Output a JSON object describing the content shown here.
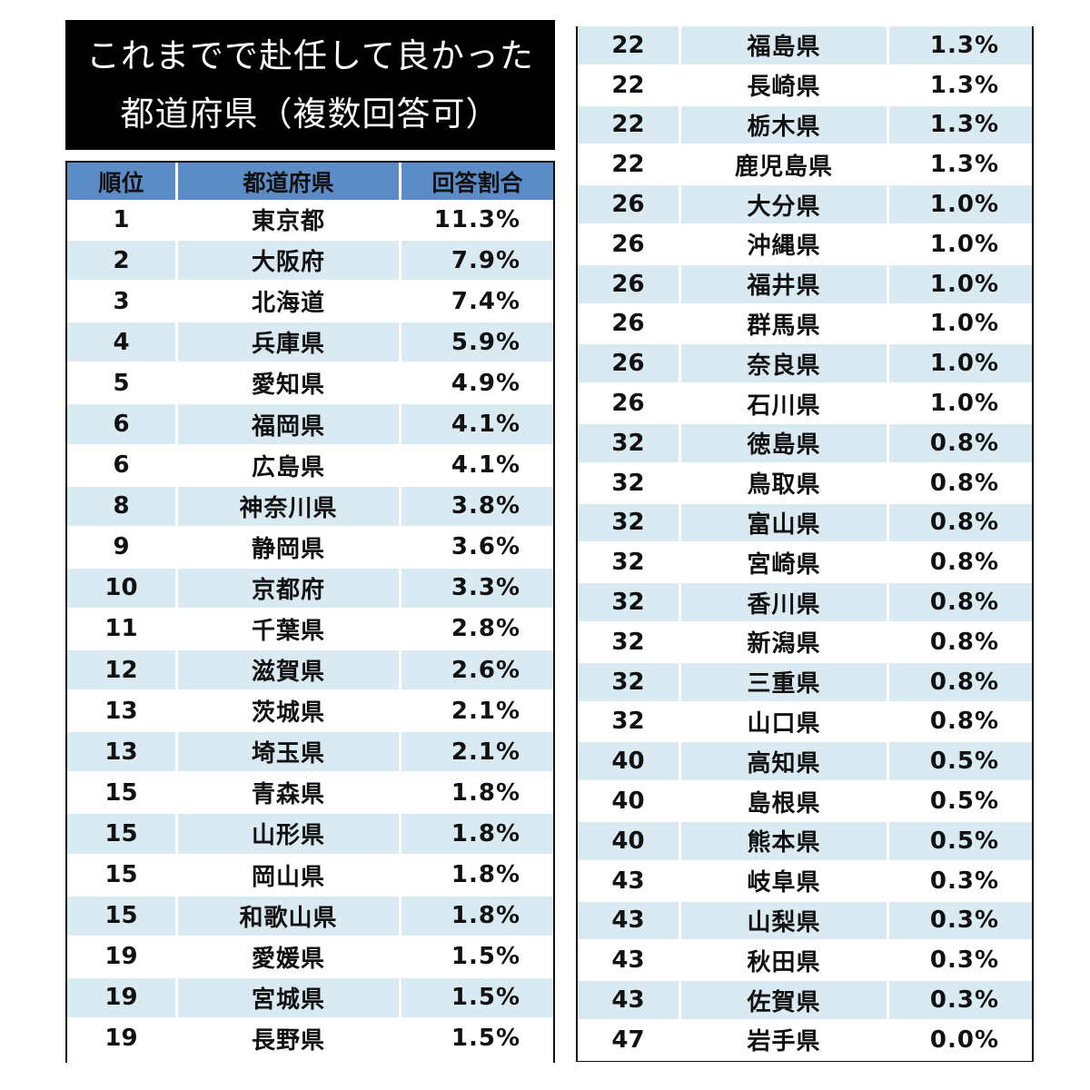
{
  "title": {
    "line1": "これまでで赴任して良かった",
    "line2": "都道府県（複数回答可）"
  },
  "colors": {
    "title_bg": "#000000",
    "header_bg": "#5b8cc7",
    "alt_row_bg": "#d9eaf2"
  },
  "headers": {
    "rank": "順位",
    "prefecture": "都道府県",
    "ratio": "回答割合"
  },
  "left_rows": [
    {
      "rank": "1",
      "name": "東京都",
      "pct": "11.3%"
    },
    {
      "rank": "2",
      "name": "大阪府",
      "pct": "7.9%"
    },
    {
      "rank": "3",
      "name": "北海道",
      "pct": "7.4%"
    },
    {
      "rank": "4",
      "name": "兵庫県",
      "pct": "5.9%"
    },
    {
      "rank": "5",
      "name": "愛知県",
      "pct": "4.9%"
    },
    {
      "rank": "6",
      "name": "福岡県",
      "pct": "4.1%"
    },
    {
      "rank": "6",
      "name": "広島県",
      "pct": "4.1%"
    },
    {
      "rank": "8",
      "name": "神奈川県",
      "pct": "3.8%"
    },
    {
      "rank": "9",
      "name": "静岡県",
      "pct": "3.6%"
    },
    {
      "rank": "10",
      "name": "京都府",
      "pct": "3.3%"
    },
    {
      "rank": "11",
      "name": "千葉県",
      "pct": "2.8%"
    },
    {
      "rank": "12",
      "name": "滋賀県",
      "pct": "2.6%"
    },
    {
      "rank": "13",
      "name": "茨城県",
      "pct": "2.1%"
    },
    {
      "rank": "13",
      "name": "埼玉県",
      "pct": "2.1%"
    },
    {
      "rank": "15",
      "name": "青森県",
      "pct": "1.8%"
    },
    {
      "rank": "15",
      "name": "山形県",
      "pct": "1.8%"
    },
    {
      "rank": "15",
      "name": "岡山県",
      "pct": "1.8%"
    },
    {
      "rank": "15",
      "name": "和歌山県",
      "pct": "1.8%"
    },
    {
      "rank": "19",
      "name": "愛媛県",
      "pct": "1.5%"
    },
    {
      "rank": "19",
      "name": "宮城県",
      "pct": "1.5%"
    },
    {
      "rank": "19",
      "name": "長野県",
      "pct": "1.5%"
    }
  ],
  "right_rows": [
    {
      "rank": "22",
      "name": "福島県",
      "pct": "1.3%"
    },
    {
      "rank": "22",
      "name": "長崎県",
      "pct": "1.3%"
    },
    {
      "rank": "22",
      "name": "栃木県",
      "pct": "1.3%"
    },
    {
      "rank": "22",
      "name": "鹿児島県",
      "pct": "1.3%"
    },
    {
      "rank": "26",
      "name": "大分県",
      "pct": "1.0%"
    },
    {
      "rank": "26",
      "name": "沖縄県",
      "pct": "1.0%"
    },
    {
      "rank": "26",
      "name": "福井県",
      "pct": "1.0%"
    },
    {
      "rank": "26",
      "name": "群馬県",
      "pct": "1.0%"
    },
    {
      "rank": "26",
      "name": "奈良県",
      "pct": "1.0%"
    },
    {
      "rank": "26",
      "name": "石川県",
      "pct": "1.0%"
    },
    {
      "rank": "32",
      "name": "徳島県",
      "pct": "0.8%"
    },
    {
      "rank": "32",
      "name": "鳥取県",
      "pct": "0.8%"
    },
    {
      "rank": "32",
      "name": "富山県",
      "pct": "0.8%"
    },
    {
      "rank": "32",
      "name": "宮崎県",
      "pct": "0.8%"
    },
    {
      "rank": "32",
      "name": "香川県",
      "pct": "0.8%"
    },
    {
      "rank": "32",
      "name": "新潟県",
      "pct": "0.8%"
    },
    {
      "rank": "32",
      "name": "三重県",
      "pct": "0.8%"
    },
    {
      "rank": "32",
      "name": "山口県",
      "pct": "0.8%"
    },
    {
      "rank": "40",
      "name": "高知県",
      "pct": "0.5%"
    },
    {
      "rank": "40",
      "name": "島根県",
      "pct": "0.5%"
    },
    {
      "rank": "40",
      "name": "熊本県",
      "pct": "0.5%"
    },
    {
      "rank": "43",
      "name": "岐阜県",
      "pct": "0.3%"
    },
    {
      "rank": "43",
      "name": "山梨県",
      "pct": "0.3%"
    },
    {
      "rank": "43",
      "name": "秋田県",
      "pct": "0.3%"
    },
    {
      "rank": "43",
      "name": "佐賀県",
      "pct": "0.3%"
    },
    {
      "rank": "47",
      "name": "岩手県",
      "pct": "0.0%"
    }
  ]
}
